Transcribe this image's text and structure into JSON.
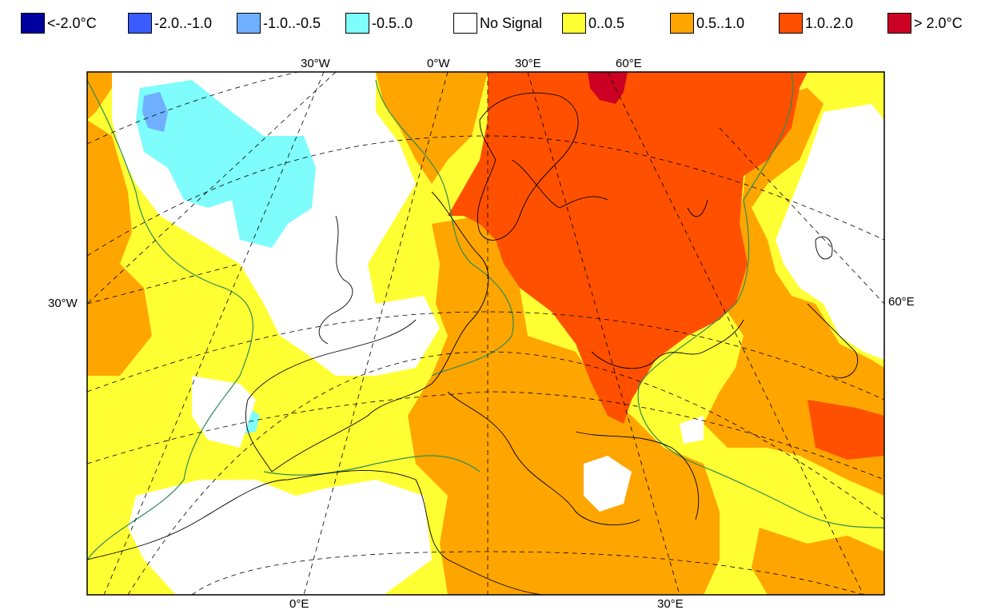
{
  "legend": {
    "items": [
      {
        "label": "<-2.0°C",
        "color": "#00009f"
      },
      {
        "label": "-2.0..-1.0",
        "color": "#3a5cff"
      },
      {
        "label": "-1.0..-0.5",
        "color": "#6eb0ff"
      },
      {
        "label": "-0.5..0",
        "color": "#7ffcfc"
      },
      {
        "label": "No Signal",
        "color": "#ffffff"
      },
      {
        "label": "0..0.5",
        "color": "#ffff33"
      },
      {
        "label": "0.5..1.0",
        "color": "#ffa500"
      },
      {
        "label": "1.0..2.0",
        "color": "#ff5000"
      },
      {
        "label": "> 2.0°C",
        "color": "#cc0022"
      }
    ]
  },
  "map": {
    "top_labels": [
      "30°W",
      "0°W",
      "30°E",
      "60°E"
    ],
    "left_label": "30°W",
    "right_label": "60°E",
    "bottom_labels": [
      "0°E",
      "30°E"
    ]
  },
  "colors": {
    "no_signal": "#ffffff",
    "light_blue": "#7ffcfc",
    "blue": "#6eb0ff",
    "yellow": "#ffff33",
    "orange": "#ffa500",
    "red_orange": "#ff5000",
    "dark_red": "#cc0022",
    "coast": "#000000",
    "contour": "#2e8b57",
    "grid": "#000000"
  }
}
